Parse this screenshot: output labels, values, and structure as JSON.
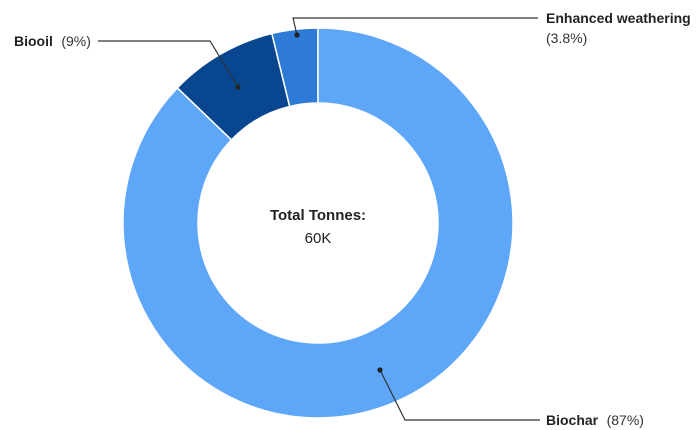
{
  "chart_data": {
    "type": "pie",
    "variant": "donut",
    "center": {
      "title": "Total Tonnes:",
      "value": "60K"
    },
    "slices": [
      {
        "name": "Enhanced weathering",
        "value": 3.8,
        "label": "(3.8%)",
        "color": "#2d7bd6"
      },
      {
        "name": "Biooil",
        "value": 9,
        "label": "(9%)",
        "color": "#08468f"
      },
      {
        "name": "Biochar",
        "value": 87,
        "label": "(87%)",
        "color": "#5ea6f7"
      }
    ]
  }
}
